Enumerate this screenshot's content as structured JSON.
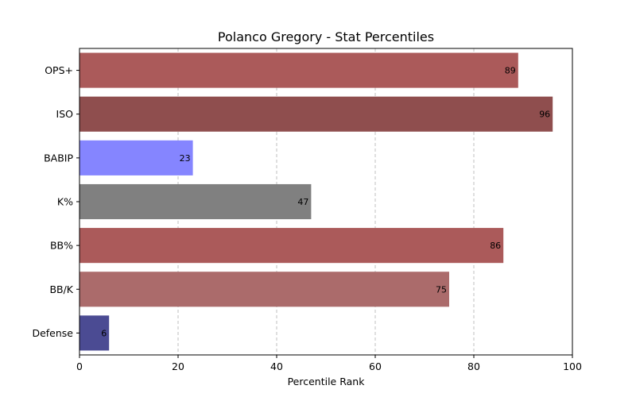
{
  "chart_data": {
    "type": "bar",
    "orientation": "horizontal",
    "title": "Polanco Gregory - Stat Percentiles",
    "xlabel": "Percentile Rank",
    "ylabel": "",
    "xlim": [
      0,
      100
    ],
    "xticks": [
      0,
      20,
      40,
      60,
      80,
      100
    ],
    "grid": "x-dashed",
    "categories": [
      "OPS+",
      "ISO",
      "BABIP",
      "K%",
      "BB%",
      "BB/K",
      "Defense"
    ],
    "values": [
      89,
      96,
      23,
      47,
      86,
      75,
      6
    ],
    "colors": [
      "#ab5a5a",
      "#8f4e4e",
      "#8585ff",
      "#808080",
      "#ab5a5a",
      "#ab6b6b",
      "#4b4b93"
    ]
  }
}
